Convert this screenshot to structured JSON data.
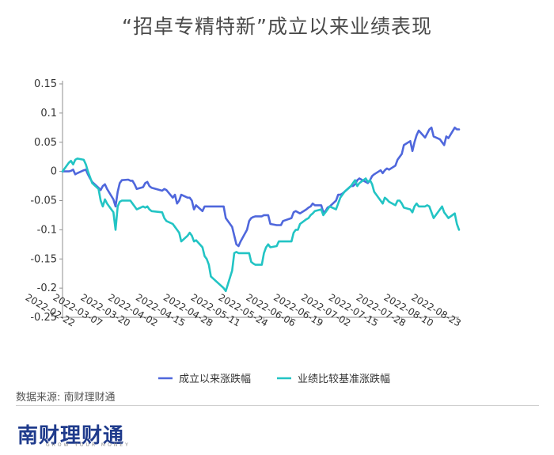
{
  "title": "“招卓专精特新”成立以来业绩表现",
  "source": "数据来源: 南财理财通",
  "logo": {
    "text": "南财理财通",
    "subtitle": "GROW YOUR MONEY"
  },
  "colors": {
    "fund": "#4f67dc",
    "benchmark": "#22c4c4",
    "axis": "#8f8f8f"
  },
  "chart_data": {
    "type": "line",
    "title": "“招卓专精特新”成立以来业绩表现",
    "xlabel": "",
    "ylabel": "",
    "ylim": [
      -0.25,
      0.15
    ],
    "yticks": [
      0.15,
      0.1,
      0.05,
      0,
      -0.05,
      -0.1,
      -0.15,
      -0.2,
      -0.25
    ],
    "ytick_labels": [
      "0.15",
      "0.1",
      "0.05",
      "0",
      "-0.05",
      "-0.1",
      "-0.15",
      "-0.2",
      "-0.25"
    ],
    "xtick_labels": [
      "2022-02-22",
      "2022-03-07",
      "2022-03-20",
      "2022-04-02",
      "2022-04-15",
      "2022-04-28",
      "2022-05-11",
      "2022-05-24",
      "2022-06-06",
      "2022-06-19",
      "2022-07-02",
      "2022-07-15",
      "2022-07-28",
      "2022-08-10",
      "2022-08-23"
    ],
    "xlim": [
      "2022-02-18",
      "2022-08-24"
    ],
    "grid": false,
    "legend_position": "bottom",
    "series": [
      {
        "name": "成立以来涨跌幅",
        "color": "#4f67dc",
        "points": [
          [
            "2022-02-18",
            0
          ],
          [
            "2022-02-21",
            0
          ],
          [
            "2022-02-22",
            0.001
          ],
          [
            "2022-02-23",
            0.003
          ],
          [
            "2022-02-24",
            -0.005
          ],
          [
            "2022-02-25",
            -0.003
          ],
          [
            "2022-02-28",
            0.002
          ],
          [
            "2022-03-01",
            0.003
          ],
          [
            "2022-03-02",
            -0.005
          ],
          [
            "2022-03-03",
            -0.012
          ],
          [
            "2022-03-04",
            -0.018
          ],
          [
            "2022-03-07",
            -0.028
          ],
          [
            "2022-03-08",
            -0.032
          ],
          [
            "2022-03-09",
            -0.025
          ],
          [
            "2022-03-10",
            -0.022
          ],
          [
            "2022-03-11",
            -0.03
          ],
          [
            "2022-03-14",
            -0.048
          ],
          [
            "2022-03-15",
            -0.06
          ],
          [
            "2022-03-16",
            -0.035
          ],
          [
            "2022-03-17",
            -0.02
          ],
          [
            "2022-03-18",
            -0.015
          ],
          [
            "2022-03-21",
            -0.014
          ],
          [
            "2022-03-22",
            -0.016
          ],
          [
            "2022-03-23",
            -0.016
          ],
          [
            "2022-03-24",
            -0.022
          ],
          [
            "2022-03-25",
            -0.03
          ],
          [
            "2022-03-28",
            -0.027
          ],
          [
            "2022-03-29",
            -0.02
          ],
          [
            "2022-03-30",
            -0.018
          ],
          [
            "2022-03-31",
            -0.025
          ],
          [
            "2022-04-01",
            -0.028
          ],
          [
            "2022-04-06",
            -0.033
          ],
          [
            "2022-04-07",
            -0.03
          ],
          [
            "2022-04-08",
            -0.032
          ],
          [
            "2022-04-11",
            -0.045
          ],
          [
            "2022-04-12",
            -0.04
          ],
          [
            "2022-04-13",
            -0.055
          ],
          [
            "2022-04-14",
            -0.05
          ],
          [
            "2022-04-15",
            -0.04
          ],
          [
            "2022-04-18",
            -0.045
          ],
          [
            "2022-04-19",
            -0.045
          ],
          [
            "2022-04-20",
            -0.05
          ],
          [
            "2022-04-21",
            -0.065
          ],
          [
            "2022-04-22",
            -0.058
          ],
          [
            "2022-04-25",
            -0.068
          ],
          [
            "2022-04-26",
            -0.06
          ],
          [
            "2022-04-27",
            -0.06
          ],
          [
            "2022-04-28",
            -0.06
          ],
          [
            "2022-04-29",
            -0.06
          ],
          [
            "2022-05-05",
            -0.06
          ],
          [
            "2022-05-06",
            -0.08
          ],
          [
            "2022-05-09",
            -0.095
          ],
          [
            "2022-05-10",
            -0.11
          ],
          [
            "2022-05-11",
            -0.125
          ],
          [
            "2022-05-12",
            -0.128
          ],
          [
            "2022-05-13",
            -0.12
          ],
          [
            "2022-05-16",
            -0.1
          ],
          [
            "2022-05-17",
            -0.085
          ],
          [
            "2022-05-18",
            -0.08
          ],
          [
            "2022-05-19",
            -0.078
          ],
          [
            "2022-05-20",
            -0.077
          ],
          [
            "2022-05-23",
            -0.077
          ],
          [
            "2022-05-24",
            -0.075
          ],
          [
            "2022-05-25",
            -0.075
          ],
          [
            "2022-05-26",
            -0.075
          ],
          [
            "2022-05-27",
            -0.09
          ],
          [
            "2022-05-30",
            -0.092
          ],
          [
            "2022-05-31",
            -0.092
          ],
          [
            "2022-06-01",
            -0.092
          ],
          [
            "2022-06-02",
            -0.085
          ],
          [
            "2022-06-06",
            -0.08
          ],
          [
            "2022-06-07",
            -0.07
          ],
          [
            "2022-06-08",
            -0.068
          ],
          [
            "2022-06-09",
            -0.07
          ],
          [
            "2022-06-10",
            -0.072
          ],
          [
            "2022-06-13",
            -0.065
          ],
          [
            "2022-06-14",
            -0.062
          ],
          [
            "2022-06-15",
            -0.06
          ],
          [
            "2022-06-16",
            -0.055
          ],
          [
            "2022-06-17",
            -0.058
          ],
          [
            "2022-06-20",
            -0.058
          ],
          [
            "2022-06-21",
            -0.07
          ],
          [
            "2022-06-22",
            -0.068
          ],
          [
            "2022-06-23",
            -0.062
          ],
          [
            "2022-06-24",
            -0.06
          ],
          [
            "2022-06-27",
            -0.05
          ],
          [
            "2022-06-28",
            -0.04
          ],
          [
            "2022-06-29",
            -0.04
          ],
          [
            "2022-06-30",
            -0.038
          ],
          [
            "2022-07-01",
            -0.035
          ],
          [
            "2022-07-04",
            -0.025
          ],
          [
            "2022-07-05",
            -0.025
          ],
          [
            "2022-07-06",
            -0.022
          ],
          [
            "2022-07-07",
            -0.015
          ],
          [
            "2022-07-08",
            -0.012
          ],
          [
            "2022-07-11",
            -0.018
          ],
          [
            "2022-07-12",
            -0.02
          ],
          [
            "2022-07-13",
            -0.015
          ],
          [
            "2022-07-14",
            -0.008
          ],
          [
            "2022-07-15",
            -0.005
          ],
          [
            "2022-07-18",
            0.002
          ],
          [
            "2022-07-19",
            -0.003
          ],
          [
            "2022-07-20",
            0.002
          ],
          [
            "2022-07-21",
            0.005
          ],
          [
            "2022-07-22",
            0.003
          ],
          [
            "2022-07-25",
            0.01
          ],
          [
            "2022-07-26",
            0.02
          ],
          [
            "2022-07-27",
            0.025
          ],
          [
            "2022-07-28",
            0.03
          ],
          [
            "2022-07-29",
            0.045
          ],
          [
            "2022-08-01",
            0.052
          ],
          [
            "2022-08-02",
            0.035
          ],
          [
            "2022-08-03",
            0.05
          ],
          [
            "2022-08-04",
            0.062
          ],
          [
            "2022-08-05",
            0.07
          ],
          [
            "2022-08-08",
            0.058
          ],
          [
            "2022-08-09",
            0.065
          ],
          [
            "2022-08-10",
            0.072
          ],
          [
            "2022-08-11",
            0.075
          ],
          [
            "2022-08-12",
            0.06
          ],
          [
            "2022-08-15",
            0.055
          ],
          [
            "2022-08-16",
            0.05
          ],
          [
            "2022-08-17",
            0.045
          ],
          [
            "2022-08-18",
            0.06
          ],
          [
            "2022-08-19",
            0.057
          ],
          [
            "2022-08-22",
            0.075
          ],
          [
            "2022-08-23",
            0.072
          ],
          [
            "2022-08-24",
            0.072
          ]
        ]
      },
      {
        "name": "业绩比较基准涨跌幅",
        "color": "#22c4c4",
        "points": [
          [
            "2022-02-18",
            0
          ],
          [
            "2022-02-21",
            0.015
          ],
          [
            "2022-02-22",
            0.018
          ],
          [
            "2022-02-23",
            0.012
          ],
          [
            "2022-02-24",
            0.02
          ],
          [
            "2022-02-25",
            0.022
          ],
          [
            "2022-02-28",
            0.02
          ],
          [
            "2022-03-01",
            0.012
          ],
          [
            "2022-03-02",
            0.0
          ],
          [
            "2022-03-03",
            -0.01
          ],
          [
            "2022-03-04",
            -0.02
          ],
          [
            "2022-03-07",
            -0.03
          ],
          [
            "2022-03-08",
            -0.05
          ],
          [
            "2022-03-09",
            -0.06
          ],
          [
            "2022-03-10",
            -0.048
          ],
          [
            "2022-03-11",
            -0.055
          ],
          [
            "2022-03-14",
            -0.07
          ],
          [
            "2022-03-15",
            -0.1
          ],
          [
            "2022-03-16",
            -0.06
          ],
          [
            "2022-03-17",
            -0.052
          ],
          [
            "2022-03-18",
            -0.05
          ],
          [
            "2022-03-21",
            -0.05
          ],
          [
            "2022-03-22",
            -0.05
          ],
          [
            "2022-03-23",
            -0.055
          ],
          [
            "2022-03-24",
            -0.06
          ],
          [
            "2022-03-25",
            -0.065
          ],
          [
            "2022-03-28",
            -0.06
          ],
          [
            "2022-03-29",
            -0.062
          ],
          [
            "2022-03-30",
            -0.06
          ],
          [
            "2022-03-31",
            -0.065
          ],
          [
            "2022-04-01",
            -0.068
          ],
          [
            "2022-04-06",
            -0.07
          ],
          [
            "2022-04-07",
            -0.08
          ],
          [
            "2022-04-08",
            -0.085
          ],
          [
            "2022-04-11",
            -0.09
          ],
          [
            "2022-04-12",
            -0.095
          ],
          [
            "2022-04-13",
            -0.1
          ],
          [
            "2022-04-14",
            -0.105
          ],
          [
            "2022-04-15",
            -0.12
          ],
          [
            "2022-04-18",
            -0.11
          ],
          [
            "2022-04-19",
            -0.105
          ],
          [
            "2022-04-20",
            -0.11
          ],
          [
            "2022-04-21",
            -0.12
          ],
          [
            "2022-04-22",
            -0.118
          ],
          [
            "2022-04-25",
            -0.13
          ],
          [
            "2022-04-26",
            -0.145
          ],
          [
            "2022-04-27",
            -0.15
          ],
          [
            "2022-04-28",
            -0.16
          ],
          [
            "2022-04-29",
            -0.18
          ],
          [
            "2022-05-05",
            -0.2
          ],
          [
            "2022-05-06",
            -0.205
          ],
          [
            "2022-05-09",
            -0.17
          ],
          [
            "2022-05-10",
            -0.14
          ],
          [
            "2022-05-11",
            -0.138
          ],
          [
            "2022-05-12",
            -0.14
          ],
          [
            "2022-05-13",
            -0.14
          ],
          [
            "2022-05-16",
            -0.14
          ],
          [
            "2022-05-17",
            -0.14
          ],
          [
            "2022-05-18",
            -0.155
          ],
          [
            "2022-05-19",
            -0.158
          ],
          [
            "2022-05-20",
            -0.16
          ],
          [
            "2022-05-23",
            -0.16
          ],
          [
            "2022-05-24",
            -0.14
          ],
          [
            "2022-05-25",
            -0.13
          ],
          [
            "2022-05-26",
            -0.125
          ],
          [
            "2022-05-27",
            -0.13
          ],
          [
            "2022-05-30",
            -0.128
          ],
          [
            "2022-05-31",
            -0.12
          ],
          [
            "2022-06-01",
            -0.12
          ],
          [
            "2022-06-02",
            -0.12
          ],
          [
            "2022-06-06",
            -0.12
          ],
          [
            "2022-06-07",
            -0.105
          ],
          [
            "2022-06-08",
            -0.1
          ],
          [
            "2022-06-09",
            -0.1
          ],
          [
            "2022-06-10",
            -0.09
          ],
          [
            "2022-06-13",
            -0.082
          ],
          [
            "2022-06-14",
            -0.08
          ],
          [
            "2022-06-15",
            -0.075
          ],
          [
            "2022-06-16",
            -0.072
          ],
          [
            "2022-06-17",
            -0.068
          ],
          [
            "2022-06-20",
            -0.065
          ],
          [
            "2022-06-21",
            -0.075
          ],
          [
            "2022-06-22",
            -0.07
          ],
          [
            "2022-06-23",
            -0.065
          ],
          [
            "2022-06-24",
            -0.06
          ],
          [
            "2022-06-27",
            -0.065
          ],
          [
            "2022-06-28",
            -0.055
          ],
          [
            "2022-06-29",
            -0.045
          ],
          [
            "2022-06-30",
            -0.04
          ],
          [
            "2022-07-01",
            -0.035
          ],
          [
            "2022-07-04",
            -0.025
          ],
          [
            "2022-07-05",
            -0.02
          ],
          [
            "2022-07-06",
            -0.015
          ],
          [
            "2022-07-07",
            -0.025
          ],
          [
            "2022-07-08",
            -0.02
          ],
          [
            "2022-07-11",
            -0.012
          ],
          [
            "2022-07-12",
            -0.018
          ],
          [
            "2022-07-13",
            -0.015
          ],
          [
            "2022-07-14",
            -0.022
          ],
          [
            "2022-07-15",
            -0.035
          ],
          [
            "2022-07-18",
            -0.05
          ],
          [
            "2022-07-19",
            -0.055
          ],
          [
            "2022-07-20",
            -0.045
          ],
          [
            "2022-07-21",
            -0.048
          ],
          [
            "2022-07-22",
            -0.052
          ],
          [
            "2022-07-25",
            -0.058
          ],
          [
            "2022-07-26",
            -0.05
          ],
          [
            "2022-07-27",
            -0.05
          ],
          [
            "2022-07-28",
            -0.055
          ],
          [
            "2022-07-29",
            -0.062
          ],
          [
            "2022-08-01",
            -0.065
          ],
          [
            "2022-08-02",
            -0.07
          ],
          [
            "2022-08-03",
            -0.06
          ],
          [
            "2022-08-04",
            -0.055
          ],
          [
            "2022-08-05",
            -0.06
          ],
          [
            "2022-08-08",
            -0.06
          ],
          [
            "2022-08-09",
            -0.058
          ],
          [
            "2022-08-10",
            -0.06
          ],
          [
            "2022-08-11",
            -0.07
          ],
          [
            "2022-08-12",
            -0.08
          ],
          [
            "2022-08-15",
            -0.065
          ],
          [
            "2022-08-16",
            -0.06
          ],
          [
            "2022-08-17",
            -0.07
          ],
          [
            "2022-08-18",
            -0.075
          ],
          [
            "2022-08-19",
            -0.08
          ],
          [
            "2022-08-22",
            -0.072
          ],
          [
            "2022-08-23",
            -0.09
          ],
          [
            "2022-08-24",
            -0.1
          ]
        ]
      }
    ]
  }
}
